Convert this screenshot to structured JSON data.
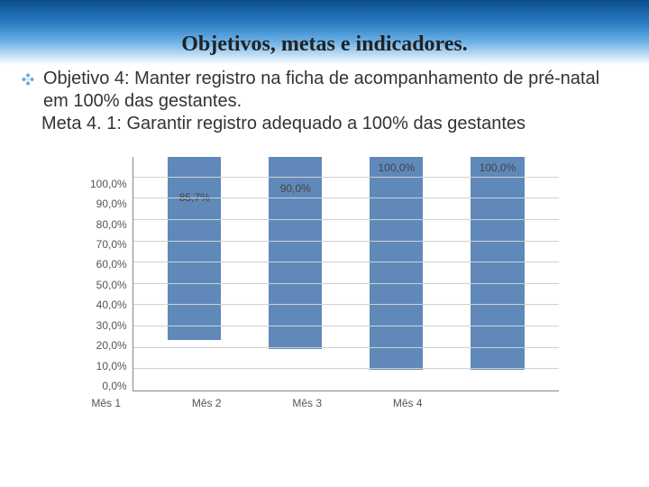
{
  "slide": {
    "title": "Objetivos, metas e indicadores.",
    "objective": "Objetivo 4: Manter registro na ficha de acompanhamento de pré-natal em 100% das gestantes.",
    "goal": "Meta 4. 1: Garantir registro adequado a 100% das gestantes"
  },
  "chart": {
    "type": "bar",
    "categories": [
      "Mês 1",
      "Mês 2",
      "Mês 3",
      "Mês 4"
    ],
    "values": [
      85.7,
      90.0,
      100.0,
      100.0
    ],
    "value_labels": [
      "85,7%",
      "90,0%",
      "100,0%",
      "100,0%"
    ],
    "bar_color": "#6089b9",
    "ylim": [
      0,
      110
    ],
    "y_ticks": [
      0,
      10,
      20,
      30,
      40,
      50,
      60,
      70,
      80,
      90,
      100
    ],
    "y_tick_labels": [
      "0,0%",
      "10,0%",
      "20,0%",
      "30,0%",
      "40,0%",
      "50,0%",
      "60,0%",
      "70,0%",
      "80,0%",
      "90,0%",
      "100,0%"
    ],
    "grid_color": "#d0d0d0",
    "axis_color": "#888888",
    "label_fontsize": 12,
    "label_color": "#555555",
    "background_color": "#ffffff"
  },
  "style": {
    "header_gradient_top": "#0a4d8c",
    "header_gradient_bottom": "#ffffff",
    "title_font": "Georgia, serif",
    "title_fontsize": 24,
    "body_fontsize": 20,
    "bullet_color": "#5a9bd5"
  }
}
